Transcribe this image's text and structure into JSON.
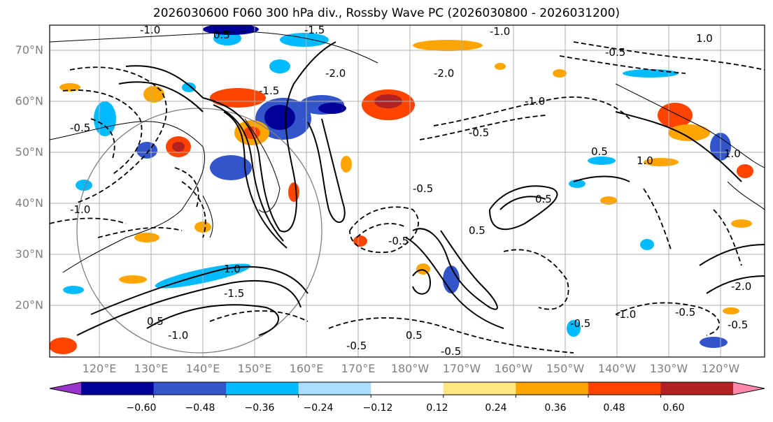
{
  "title": "2026030600 F060 300 hPa div., Rossby Wave PC (2026030800 - 2026031200)",
  "lat_labels": [
    "70°N",
    "60°N",
    "50°N",
    "40°N",
    "30°N",
    "20°N"
  ],
  "lon_labels": [
    "120°E",
    "130°E",
    "140°E",
    "150°E",
    "160°E",
    "170°E",
    "180°W",
    "170°W",
    "160°W",
    "150°W",
    "140°W",
    "130°W",
    "120°W"
  ],
  "colorbar": {
    "colors": [
      "#9933cc",
      "#000099",
      "#3355cc",
      "#00bbff",
      "#aaddff",
      "#ffffff",
      "#ffe680",
      "#ffa500",
      "#ff4400",
      "#b22222",
      "#ff88aa"
    ],
    "tick_labels": [
      "−0.60",
      "−0.48",
      "−0.36",
      "−0.24",
      "−0.12",
      "0.12",
      "0.24",
      "0.36",
      "0.48",
      "0.60"
    ]
  },
  "contour_labels": [
    "-1.0",
    "0.5",
    "-1.5",
    "-1.0",
    "-0.5",
    "1.0",
    "-0.5",
    "-2.0",
    "-0.5",
    "-1.0",
    "-1.0",
    "1.0",
    "0.5",
    "-1.5",
    "-2.0",
    "-0.5",
    "0.5",
    "1.0",
    "0.5",
    "-0.5",
    "-1.5",
    "0.5",
    "-1.0",
    "-0.5",
    "0.5",
    "-0.5",
    "-0.5",
    "-2.0",
    "-1.0",
    "-0.5",
    "1.0",
    "-0.5"
  ]
}
